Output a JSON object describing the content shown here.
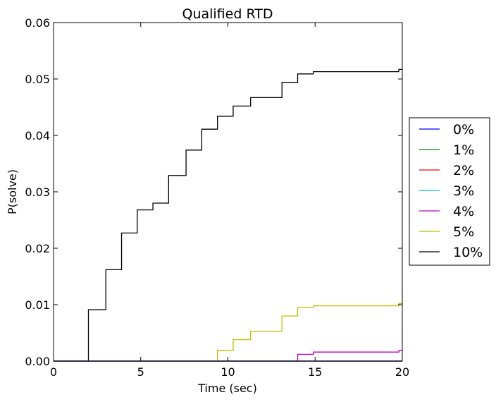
{
  "chart_data": {
    "type": "line",
    "step": true,
    "title": "Qualified RTD",
    "xlabel": "Time (sec)",
    "ylabel": "P(solve)",
    "xlim": [
      0,
      20
    ],
    "ylim": [
      0,
      0.06
    ],
    "xticks": [
      0,
      5,
      10,
      15,
      20
    ],
    "xtick_labels": [
      "0",
      "5",
      "10",
      "15",
      "20"
    ],
    "yticks": [
      0,
      0.01,
      0.02,
      0.03,
      0.04,
      0.05,
      0.06
    ],
    "ytick_labels": [
      "0.00",
      "0.01",
      "0.02",
      "0.03",
      "0.04",
      "0.05",
      "0.06"
    ],
    "grid": false,
    "legend_position": "center-right-outside",
    "series": [
      {
        "name": "0%",
        "color": "#0000ff",
        "x": [
          0,
          20
        ],
        "y": [
          0,
          0
        ]
      },
      {
        "name": "1%",
        "color": "#008000",
        "x": [
          0,
          20
        ],
        "y": [
          0,
          0
        ]
      },
      {
        "name": "2%",
        "color": "#ff0000",
        "x": [
          0,
          20
        ],
        "y": [
          0,
          0
        ]
      },
      {
        "name": "3%",
        "color": "#00bfbf",
        "x": [
          0,
          20
        ],
        "y": [
          0,
          0
        ]
      },
      {
        "name": "4%",
        "color": "#bf00bf",
        "x": [
          0,
          14.0,
          14.9,
          19.8,
          20
        ],
        "y": [
          0,
          0.0012,
          0.0016,
          0.0019,
          0.0019
        ]
      },
      {
        "name": "5%",
        "color": "#bfbf00",
        "x": [
          0,
          9.4,
          10.3,
          11.3,
          13.1,
          14.0,
          14.9,
          19.8,
          20
        ],
        "y": [
          0,
          0.0019,
          0.0038,
          0.0053,
          0.008,
          0.0095,
          0.0098,
          0.0102,
          0.0102
        ]
      },
      {
        "name": "10%",
        "color": "#000000",
        "x": [
          0,
          2.0,
          3.0,
          3.9,
          4.8,
          5.7,
          6.6,
          7.6,
          8.5,
          9.4,
          10.3,
          11.3,
          13.1,
          14.0,
          14.9,
          19.8,
          20
        ],
        "y": [
          0,
          0.0091,
          0.0162,
          0.0227,
          0.0268,
          0.028,
          0.0329,
          0.0374,
          0.0411,
          0.0434,
          0.0452,
          0.0467,
          0.0494,
          0.0509,
          0.0513,
          0.0517,
          0.0517
        ]
      }
    ]
  }
}
